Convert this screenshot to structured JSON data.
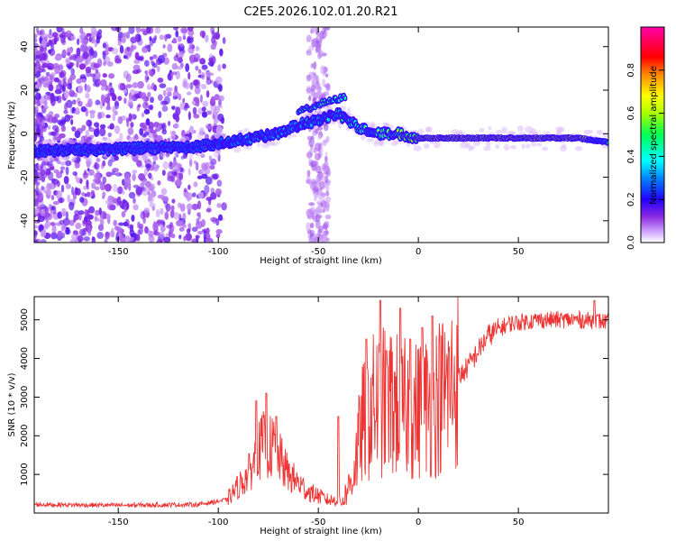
{
  "title": "C2E5.2026.102.01.20.R21",
  "chart_data": [
    {
      "type": "heatmap",
      "name": "spectrogram",
      "xlabel": "Height of straight line (km)",
      "ylabel": "Frequency (Hz)",
      "xlim": [
        -192,
        95
      ],
      "ylim": [
        -50,
        49
      ],
      "xticks": [
        -150,
        -100,
        -50,
        0,
        50
      ],
      "yticks": [
        -40,
        -20,
        0,
        20,
        40
      ],
      "colorbar": {
        "label": "Normalized spectral amplitude",
        "range": [
          0,
          1
        ],
        "ticks": [
          0.0,
          0.2,
          0.4,
          0.6,
          0.8
        ]
      },
      "ridge": [
        {
          "x": -190,
          "y": -8
        },
        {
          "x": -150,
          "y": -7
        },
        {
          "x": -110,
          "y": -6
        },
        {
          "x": -90,
          "y": -3
        },
        {
          "x": -70,
          "y": 0
        },
        {
          "x": -60,
          "y": 4
        },
        {
          "x": -50,
          "y": 6
        },
        {
          "x": -40,
          "y": 9
        },
        {
          "x": -30,
          "y": 3
        },
        {
          "x": -20,
          "y": 0
        },
        {
          "x": -10,
          "y": 0
        },
        {
          "x": 0,
          "y": -2
        },
        {
          "x": 40,
          "y": -2
        },
        {
          "x": 80,
          "y": -2
        },
        {
          "x": 95,
          "y": -4
        }
      ],
      "secondary_ridge": [
        {
          "x": -60,
          "y": 10
        },
        {
          "x": -48,
          "y": 14
        },
        {
          "x": -36,
          "y": 17
        }
      ]
    },
    {
      "type": "line",
      "name": "snr",
      "xlabel": "Height of straight line (km)",
      "ylabel": "SNR (10 * v/v)",
      "xlim": [
        -192,
        95
      ],
      "ylim": [
        0,
        5600
      ],
      "xticks": [
        -150,
        -100,
        -50,
        0,
        50
      ],
      "yticks": [
        1000,
        2000,
        3000,
        4000,
        5000
      ],
      "color": "#ee3333",
      "envelope": [
        {
          "x": -190,
          "y": 220
        },
        {
          "x": -150,
          "y": 200
        },
        {
          "x": -110,
          "y": 220
        },
        {
          "x": -95,
          "y": 350
        },
        {
          "x": -85,
          "y": 900
        },
        {
          "x": -78,
          "y": 1600
        },
        {
          "x": -72,
          "y": 1500
        },
        {
          "x": -65,
          "y": 900
        },
        {
          "x": -55,
          "y": 500
        },
        {
          "x": -45,
          "y": 300
        },
        {
          "x": -38,
          "y": 300
        },
        {
          "x": -33,
          "y": 900
        },
        {
          "x": -28,
          "y": 2300
        },
        {
          "x": -22,
          "y": 2800
        },
        {
          "x": -15,
          "y": 2900
        },
        {
          "x": -8,
          "y": 2700
        },
        {
          "x": -3,
          "y": 2600
        },
        {
          "x": 5,
          "y": 2800
        },
        {
          "x": 15,
          "y": 3200
        },
        {
          "x": 25,
          "y": 3800
        },
        {
          "x": 35,
          "y": 4600
        },
        {
          "x": 45,
          "y": 4900
        },
        {
          "x": 60,
          "y": 5000
        },
        {
          "x": 80,
          "y": 5000
        },
        {
          "x": 95,
          "y": 4950
        }
      ],
      "spikes": [
        {
          "x": -81,
          "y": 2900
        },
        {
          "x": -76,
          "y": 3100
        },
        {
          "x": -71,
          "y": 2500
        },
        {
          "x": -40,
          "y": 2500
        },
        {
          "x": -26,
          "y": 4500
        },
        {
          "x": -19,
          "y": 5500
        },
        {
          "x": -16,
          "y": 4200
        },
        {
          "x": -9,
          "y": 5300
        },
        {
          "x": -4,
          "y": 4500
        },
        {
          "x": 2,
          "y": 4800
        },
        {
          "x": 7,
          "y": 5100
        },
        {
          "x": 88,
          "y": 5500
        }
      ]
    }
  ]
}
